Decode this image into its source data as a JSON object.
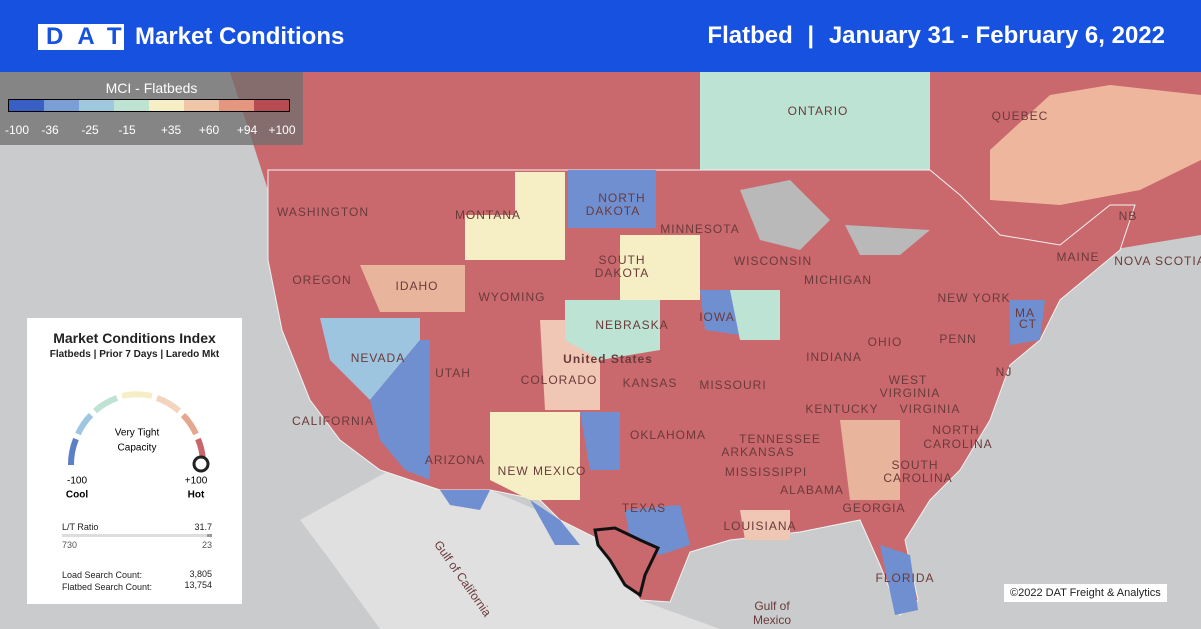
{
  "header": {
    "logo": "DAT",
    "title": "Market Conditions",
    "equipment": "Flatbed",
    "separator": "|",
    "date_range": "January 31 - February 6, 2022"
  },
  "legend": {
    "title": "MCI - Flatbeds",
    "ticks": [
      "-100",
      "-36",
      "-25",
      "-15",
      "+35",
      "+60",
      "+94",
      "+100"
    ]
  },
  "panel": {
    "title": "Market Conditions Index",
    "subtitle": "Flatbeds | Prior 7 Days | Laredo Mkt",
    "status_line1": "Very Tight",
    "status_line2": "Capacity",
    "min_value": "-100",
    "min_label": "Cool",
    "max_value": "+100",
    "max_label": "Hot",
    "lt_ratio_label": "L/T Ratio",
    "lt_ratio": "31.7",
    "loads": "730",
    "trucks": "23",
    "load_search_label": "Load Search Count:",
    "load_search": "3,805",
    "flatbed_search_label": "Flatbed Search Count:",
    "flatbed_search": "13,754"
  },
  "map_labels": [
    "ONTARIO",
    "QUEBEC",
    "NB",
    "NOVA SCOTIA",
    "WASHINGTON",
    "MONTANA",
    "NORTH",
    "DAKOTA",
    "MINNESOTA",
    "OREGON",
    "IDAHO",
    "SOUTH",
    "DAKOTA",
    "WISCONSIN",
    "MICHIGAN",
    "MAINE",
    "NEW YORK",
    "WYOMING",
    "NEBRASKA",
    "IOWA",
    "NEVADA",
    "United States",
    "UTAH",
    "COLORADO",
    "KANSAS",
    "MISSOURI",
    "INDIANA",
    "OHIO",
    "PENN",
    "NJ",
    "MA",
    "CT",
    "WEST",
    "VIRGINIA",
    "KENTUCKY",
    "VIRGINIA",
    "CALIFORNIA",
    "OKLAHOMA",
    "TENNESSEE",
    "NORTH",
    "CAROLINA",
    "ARIZONA",
    "NEW MEXICO",
    "ARKANSAS",
    "SOUTH",
    "CAROLINA",
    "MISSISSIPPI",
    "ALABAMA",
    "GEORGIA",
    "TEXAS",
    "LOUISIANA",
    "FLORIDA",
    "Gulf of California",
    "Gulf of",
    "Mexico"
  ],
  "copyright": "©2022 DAT Freight & Analytics"
}
